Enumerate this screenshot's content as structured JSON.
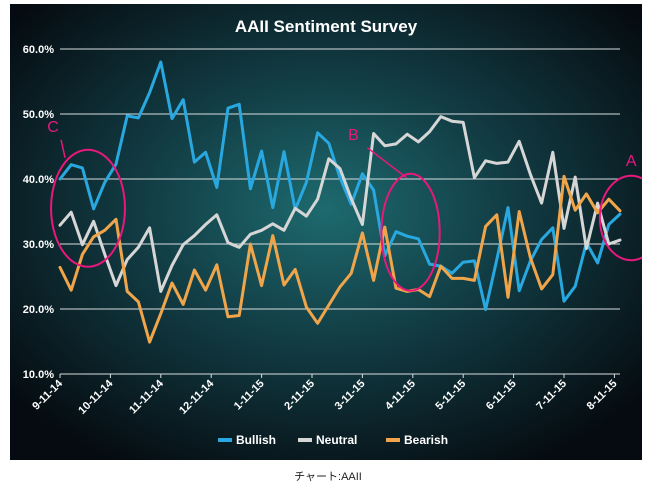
{
  "source_caption": "チャート:AAII",
  "chart_data": {
    "type": "line",
    "title": "AAII Sentiment Survey",
    "xlabel": "",
    "ylabel": "",
    "ylim": [
      10,
      60
    ],
    "y_ticks": [
      10,
      20,
      30,
      40,
      50,
      60
    ],
    "y_tick_labels": [
      "10.0%",
      "20.0%",
      "30.0%",
      "40.0%",
      "50.0%",
      "60.0%"
    ],
    "x_ticks": [
      {
        "i": 0,
        "label": "9-11-14"
      },
      {
        "i": 4.5,
        "label": "10-11-14"
      },
      {
        "i": 9,
        "label": "11-11-14"
      },
      {
        "i": 13.5,
        "label": "12-11-14"
      },
      {
        "i": 18,
        "label": "1-11-15"
      },
      {
        "i": 22.5,
        "label": "2-11-15"
      },
      {
        "i": 27,
        "label": "3-11-15"
      },
      {
        "i": 31.5,
        "label": "4-11-15"
      },
      {
        "i": 36,
        "label": "5-11-15"
      },
      {
        "i": 40.5,
        "label": "6-11-15"
      },
      {
        "i": 45,
        "label": "7-11-15"
      },
      {
        "i": 49.5,
        "label": "8-11-15"
      }
    ],
    "grid": true,
    "legend_position": "bottom",
    "series": [
      {
        "name": "Bullish",
        "color": "#29a8e0",
        "values": [
          40,
          42.2,
          41.7,
          35.4,
          39.5,
          42.3,
          49.7,
          49.4,
          53.3,
          58.0,
          49.3,
          52.2,
          42.6,
          44.1,
          38.7,
          50.9,
          51.5,
          38.5,
          44.3,
          35.6,
          44.2,
          35.3,
          39.5,
          47.1,
          45.5,
          40.2,
          36.1,
          40.8,
          38.3,
          28.2,
          31.9,
          31.2,
          30.8,
          26.9,
          26.6,
          25.5,
          27.2,
          27.4,
          19.9,
          27.6,
          35.6,
          22.8,
          27.4,
          30.7,
          32.5,
          21.2,
          23.5,
          30.2,
          27.1,
          33.0,
          34.6
        ]
      },
      {
        "name": "Neutral",
        "color": "#d6d6d6",
        "values": [
          32.9,
          34.9,
          29.9,
          33.5,
          28.4,
          23.6,
          27.6,
          29.5,
          32.5,
          22.7,
          26.7,
          29.9,
          31.3,
          33.0,
          34.5,
          30.2,
          29.5,
          31.5,
          32.1,
          33.1,
          32.1,
          35.5,
          34.3,
          36.9,
          43.1,
          41.6,
          37.0,
          33.0,
          47.0,
          45.1,
          45.4,
          46.9,
          45.7,
          47.3,
          49.6,
          48.9,
          48.7,
          40.2,
          42.8,
          42.4,
          42.6,
          45.8,
          40.7,
          36.3,
          44.1,
          32.4,
          40.3,
          29.3,
          36.3,
          30.0,
          30.6
        ]
      },
      {
        "name": "Bearish",
        "color": "#f0a54a",
        "values": [
          26.4,
          22.9,
          28.4,
          31.1,
          32.1,
          33.8,
          22.7,
          21.1,
          14.9,
          19.3,
          24.0,
          20.7,
          26.0,
          22.9,
          26.8,
          18.8,
          19.0,
          30.0,
          23.6,
          31.3,
          23.7,
          26.1,
          20.3,
          17.8,
          20.6,
          23.4,
          25.5,
          31.7,
          24.4,
          32.6,
          23.2,
          22.7,
          23.0,
          21.9,
          26.6,
          24.7,
          24.7,
          24.4,
          32.7,
          34.5,
          21.8,
          35.0,
          27.9,
          23.1,
          25.3,
          40.4,
          35.2,
          37.7,
          34.8,
          36.9,
          35.1
        ]
      }
    ],
    "annotations": [
      {
        "label": "A",
        "color": "#e8187c",
        "circle": {
          "cx": 51,
          "cy": 34,
          "rx": 2.8,
          "ry": 6.5
        }
      },
      {
        "label": "B",
        "color": "#e8187c",
        "circle": {
          "cx": 31.3,
          "cy": 31.8,
          "rx": 2.6,
          "ry": 9
        }
      },
      {
        "label": "C",
        "color": "#e8187c",
        "circle": {
          "cx": 2.5,
          "cy": 35.5,
          "rx": 3.3,
          "ry": 9
        }
      }
    ]
  }
}
